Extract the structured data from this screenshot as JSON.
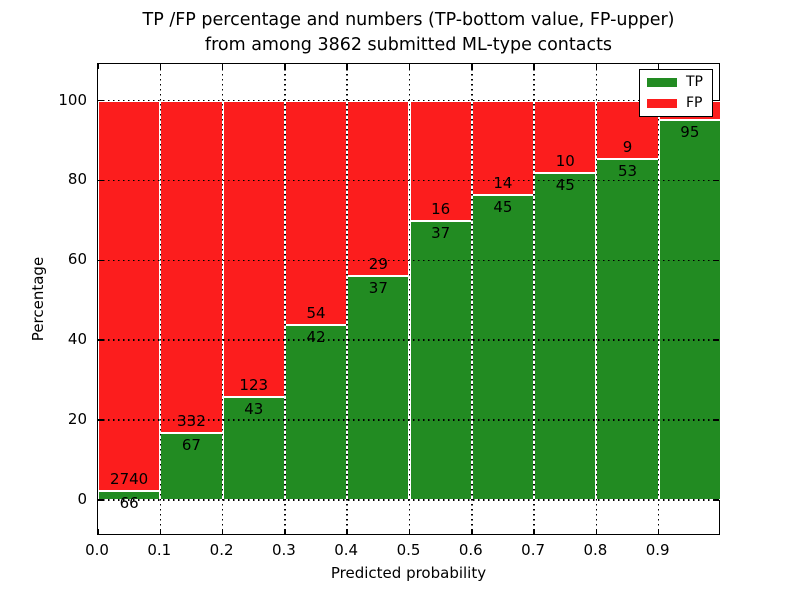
{
  "chart_data": {
    "type": "bar",
    "stacked": true,
    "title_line1": "TP /FP percentage and numbers (TP-bottom value, FP-upper)",
    "title_line2": "from among 3862 submitted ML-type contacts",
    "xlabel": "Predicted probability",
    "ylabel": "Percentage",
    "x_tick_labels": [
      "0.0",
      "0.1",
      "0.2",
      "0.3",
      "0.4",
      "0.5",
      "0.6",
      "0.7",
      "0.8",
      "0.9"
    ],
    "y_tick_labels": [
      "0",
      "20",
      "40",
      "60",
      "80",
      "100"
    ],
    "y_ticks": [
      0,
      20,
      40,
      60,
      80,
      100
    ],
    "xlim": [
      0.0,
      1.0
    ],
    "ylim": [
      -9,
      109
    ],
    "bin_width": 0.1,
    "grid": "dotted",
    "legend_position": "upper right",
    "colors": {
      "tp": "#228b22",
      "fp": "#fc1d1d"
    },
    "legend": [
      {
        "label": "TP",
        "color": "#228b22"
      },
      {
        "label": "FP",
        "color": "#fc1d1d"
      }
    ],
    "bins": [
      {
        "x_start": 0.0,
        "tp": 66,
        "fp": 2740,
        "tp_pct": 2.35,
        "fp_label_visible": true
      },
      {
        "x_start": 0.1,
        "tp": 67,
        "fp": 332,
        "tp_pct": 16.79,
        "fp_label_visible": true
      },
      {
        "x_start": 0.2,
        "tp": 43,
        "fp": 123,
        "tp_pct": 25.9,
        "fp_label_visible": true
      },
      {
        "x_start": 0.3,
        "tp": 42,
        "fp": 54,
        "tp_pct": 43.75,
        "fp_label_visible": true
      },
      {
        "x_start": 0.4,
        "tp": 37,
        "fp": 29,
        "tp_pct": 56.06,
        "fp_label_visible": true
      },
      {
        "x_start": 0.5,
        "tp": 37,
        "fp": 16,
        "tp_pct": 69.81,
        "fp_label_visible": true
      },
      {
        "x_start": 0.6,
        "tp": 45,
        "fp": 14,
        "tp_pct": 76.27,
        "fp_label_visible": true
      },
      {
        "x_start": 0.7,
        "tp": 45,
        "fp": 10,
        "tp_pct": 81.82,
        "fp_label_visible": true
      },
      {
        "x_start": 0.8,
        "tp": 53,
        "fp": 9,
        "tp_pct": 85.48,
        "fp_label_visible": true
      },
      {
        "x_start": 0.9,
        "tp": 95,
        "fp": null,
        "tp_pct": 95.0,
        "fp_label_visible": false
      }
    ]
  }
}
